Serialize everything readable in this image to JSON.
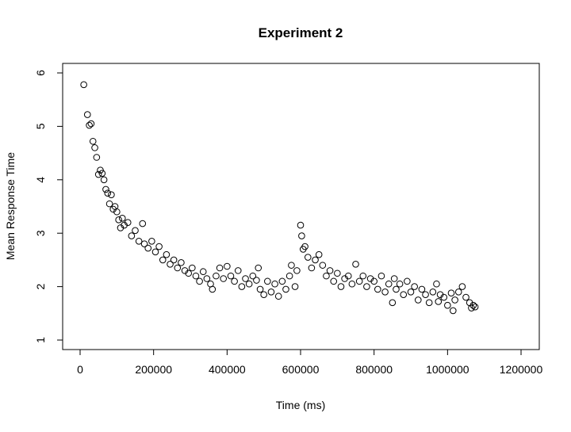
{
  "chart_data": {
    "type": "scatter",
    "title": "Experiment 2",
    "x_label": "Time (ms)",
    "y_label": "Mean Response Time",
    "x": [
      10000,
      20000,
      25000,
      30000,
      35000,
      40000,
      45000,
      50000,
      55000,
      60000,
      65000,
      70000,
      75000,
      80000,
      85000,
      90000,
      95000,
      100000,
      105000,
      110000,
      115000,
      120000,
      130000,
      140000,
      150000,
      160000,
      170000,
      175000,
      185000,
      195000,
      205000,
      215000,
      225000,
      235000,
      245000,
      255000,
      265000,
      275000,
      285000,
      295000,
      305000,
      315000,
      325000,
      335000,
      345000,
      355000,
      360000,
      370000,
      380000,
      390000,
      400000,
      410000,
      420000,
      430000,
      440000,
      450000,
      460000,
      470000,
      480000,
      485000,
      490000,
      500000,
      510000,
      520000,
      530000,
      540000,
      550000,
      560000,
      570000,
      575000,
      585000,
      590000,
      600000,
      603000,
      607000,
      612000,
      620000,
      630000,
      640000,
      650000,
      660000,
      670000,
      680000,
      690000,
      700000,
      710000,
      720000,
      730000,
      740000,
      750000,
      760000,
      770000,
      780000,
      790000,
      800000,
      810000,
      820000,
      830000,
      840000,
      850000,
      855000,
      860000,
      870000,
      880000,
      890000,
      900000,
      910000,
      920000,
      930000,
      940000,
      950000,
      960000,
      970000,
      975000,
      980000,
      990000,
      1000000,
      1010000,
      1015000,
      1020000,
      1030000,
      1040000,
      1050000,
      1060000,
      1065000,
      1070000,
      1075000
    ],
    "y": [
      5.78,
      5.22,
      5.02,
      5.05,
      4.72,
      4.6,
      4.42,
      4.1,
      4.18,
      4.12,
      4.0,
      3.82,
      3.75,
      3.55,
      3.72,
      3.45,
      3.5,
      3.4,
      3.25,
      3.1,
      3.28,
      3.15,
      3.2,
      2.95,
      3.05,
      2.85,
      3.18,
      2.8,
      2.72,
      2.85,
      2.65,
      2.75,
      2.5,
      2.6,
      2.42,
      2.5,
      2.35,
      2.45,
      2.3,
      2.25,
      2.35,
      2.2,
      2.1,
      2.28,
      2.15,
      2.05,
      1.95,
      2.2,
      2.35,
      2.15,
      2.38,
      2.2,
      2.1,
      2.3,
      2.0,
      2.15,
      2.05,
      2.2,
      2.12,
      2.35,
      1.95,
      1.85,
      2.1,
      1.9,
      2.05,
      1.82,
      2.1,
      1.95,
      2.2,
      2.4,
      2.0,
      2.3,
      3.15,
      2.95,
      2.7,
      2.75,
      2.55,
      2.35,
      2.5,
      2.6,
      2.4,
      2.2,
      2.3,
      2.1,
      2.25,
      2.0,
      2.15,
      2.2,
      2.05,
      2.42,
      2.1,
      2.2,
      2.0,
      2.15,
      2.1,
      1.95,
      2.2,
      1.9,
      2.05,
      1.7,
      2.15,
      1.95,
      2.05,
      1.85,
      2.1,
      1.9,
      2.0,
      1.75,
      1.95,
      1.85,
      1.7,
      1.9,
      2.05,
      1.72,
      1.85,
      1.8,
      1.65,
      1.88,
      1.55,
      1.75,
      1.9,
      2.0,
      1.8,
      1.7,
      1.6,
      1.65,
      1.62
    ],
    "xlim": [
      -47500,
      1249600
    ],
    "ylim": [
      0.822,
      6.178
    ],
    "xticks": [
      0,
      200000,
      400000,
      600000,
      800000,
      1000000,
      1200000
    ],
    "yticks": [
      1,
      2,
      3,
      4,
      5,
      6
    ],
    "color": "#000000"
  }
}
